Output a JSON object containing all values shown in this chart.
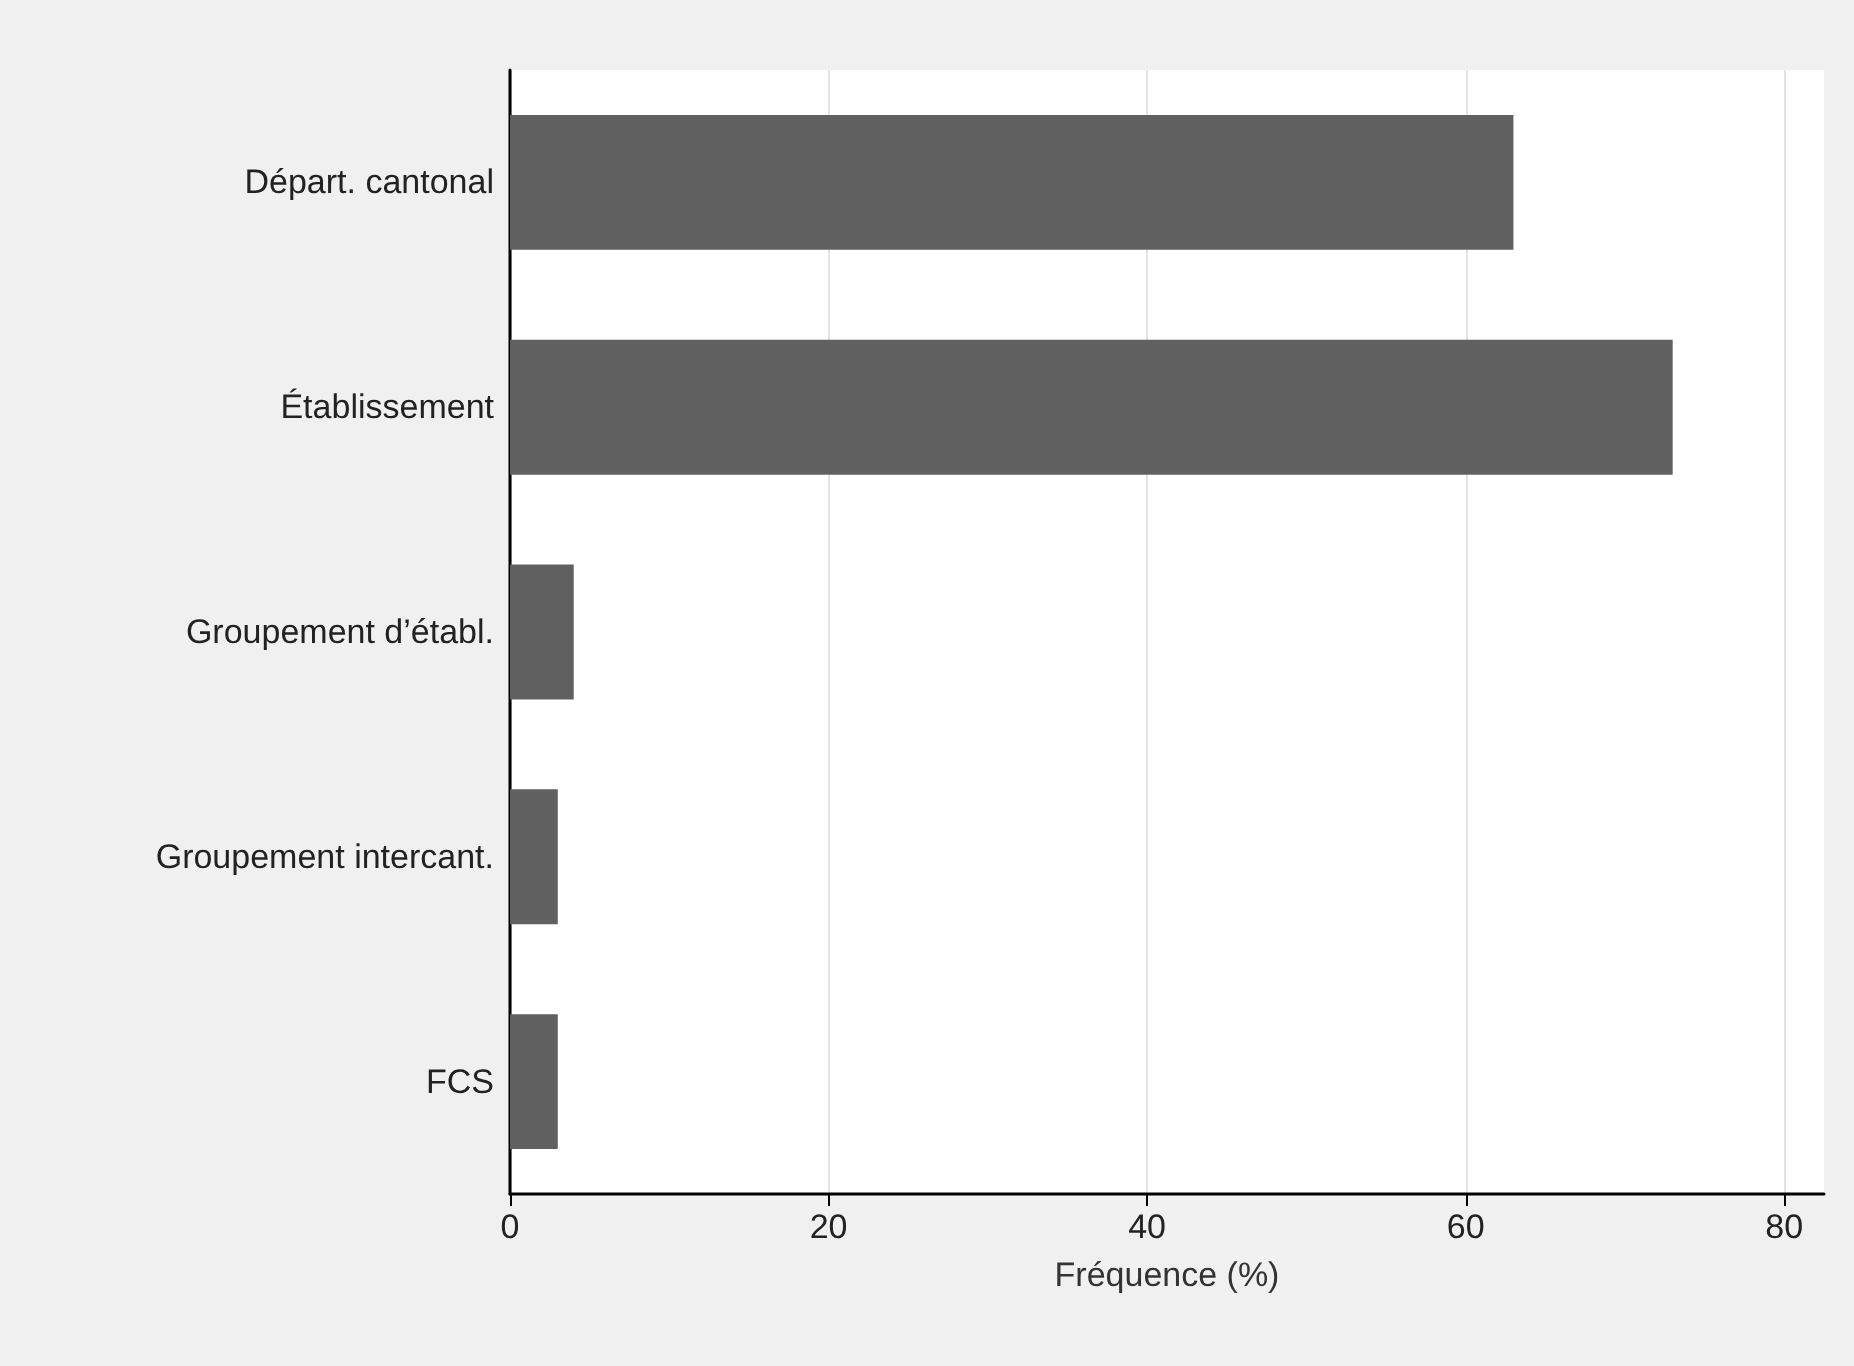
{
  "chart_data": {
    "type": "bar",
    "orientation": "horizontal",
    "categories": [
      "Départ. cantonal",
      "Établissement",
      "Groupement d’établ.",
      "Groupement intercant.",
      "FCS"
    ],
    "values": [
      63,
      73,
      4,
      3,
      3
    ],
    "color": "#606060",
    "xlabel": "Fréquence (%)",
    "xlim": [
      0,
      82.5
    ],
    "xticks": [
      0,
      20,
      40,
      60,
      80
    ],
    "grid": "x"
  }
}
